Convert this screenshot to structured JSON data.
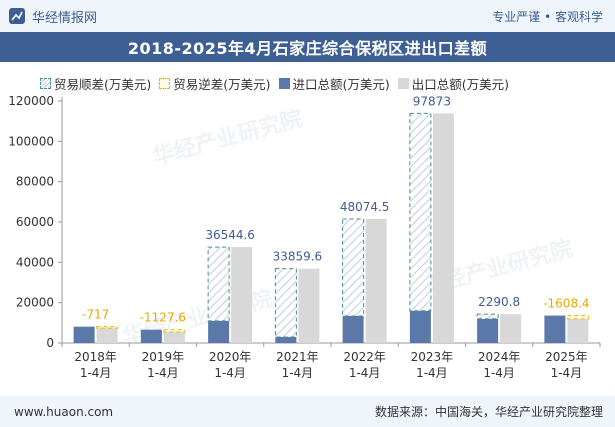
{
  "header": {
    "brand": "华经情报网",
    "slogan": "专业严谨 • 客观科学"
  },
  "watermark": "华经产业研究院",
  "footer": {
    "website": "www.huaon.com",
    "source": "数据来源：中国海关，华经产业研究院整理"
  },
  "colors": {
    "import": "#5a78a8",
    "export": "#d8d8d8",
    "surplus_border": "#4a8a9a",
    "deficit_border": "#e6b800",
    "deficit_label": "#e6a800",
    "label": "#3d5f93"
  },
  "chart_data": {
    "type": "bar",
    "title": "2018-2025年4月石家庄综合保税区进出口差额",
    "categories": [
      "2018年\n1-4月",
      "2019年\n1-4月",
      "2020年\n1-4月",
      "2021年\n1-4月",
      "2022年\n1-4月",
      "2023年\n1-4月",
      "2024年\n1-4月",
      "2025年\n1-4月"
    ],
    "legend": [
      "贸易顺差(万美元)",
      "贸易逆差(万美元)",
      "进口总额(万美元)",
      "出口总额(万美元)"
    ],
    "legend_position": "top-left",
    "series": [
      {
        "name": "进口总额(万美元)",
        "values": [
          8100,
          6600,
          11000,
          3000,
          13400,
          16000,
          12000,
          13600
        ]
      },
      {
        "name": "出口总额(万美元)",
        "values": [
          7383,
          5472,
          47545,
          36860,
          61475,
          113873,
          14291,
          11992
        ]
      }
    ],
    "balance": [
      -717,
      -1127.6,
      36544.6,
      33859.6,
      48074.5,
      97873,
      2290.8,
      -1608.4
    ],
    "balance_labels": [
      "-717",
      "-1127.6",
      "36544.6",
      "33859.6",
      "48074.5",
      "97873",
      "2290.8",
      "-1608.4"
    ],
    "y_ticks": [
      "0",
      "20000",
      "40000",
      "60000",
      "80000",
      "100000",
      "120000"
    ],
    "ylim": [
      0,
      120000
    ],
    "grid": false
  }
}
